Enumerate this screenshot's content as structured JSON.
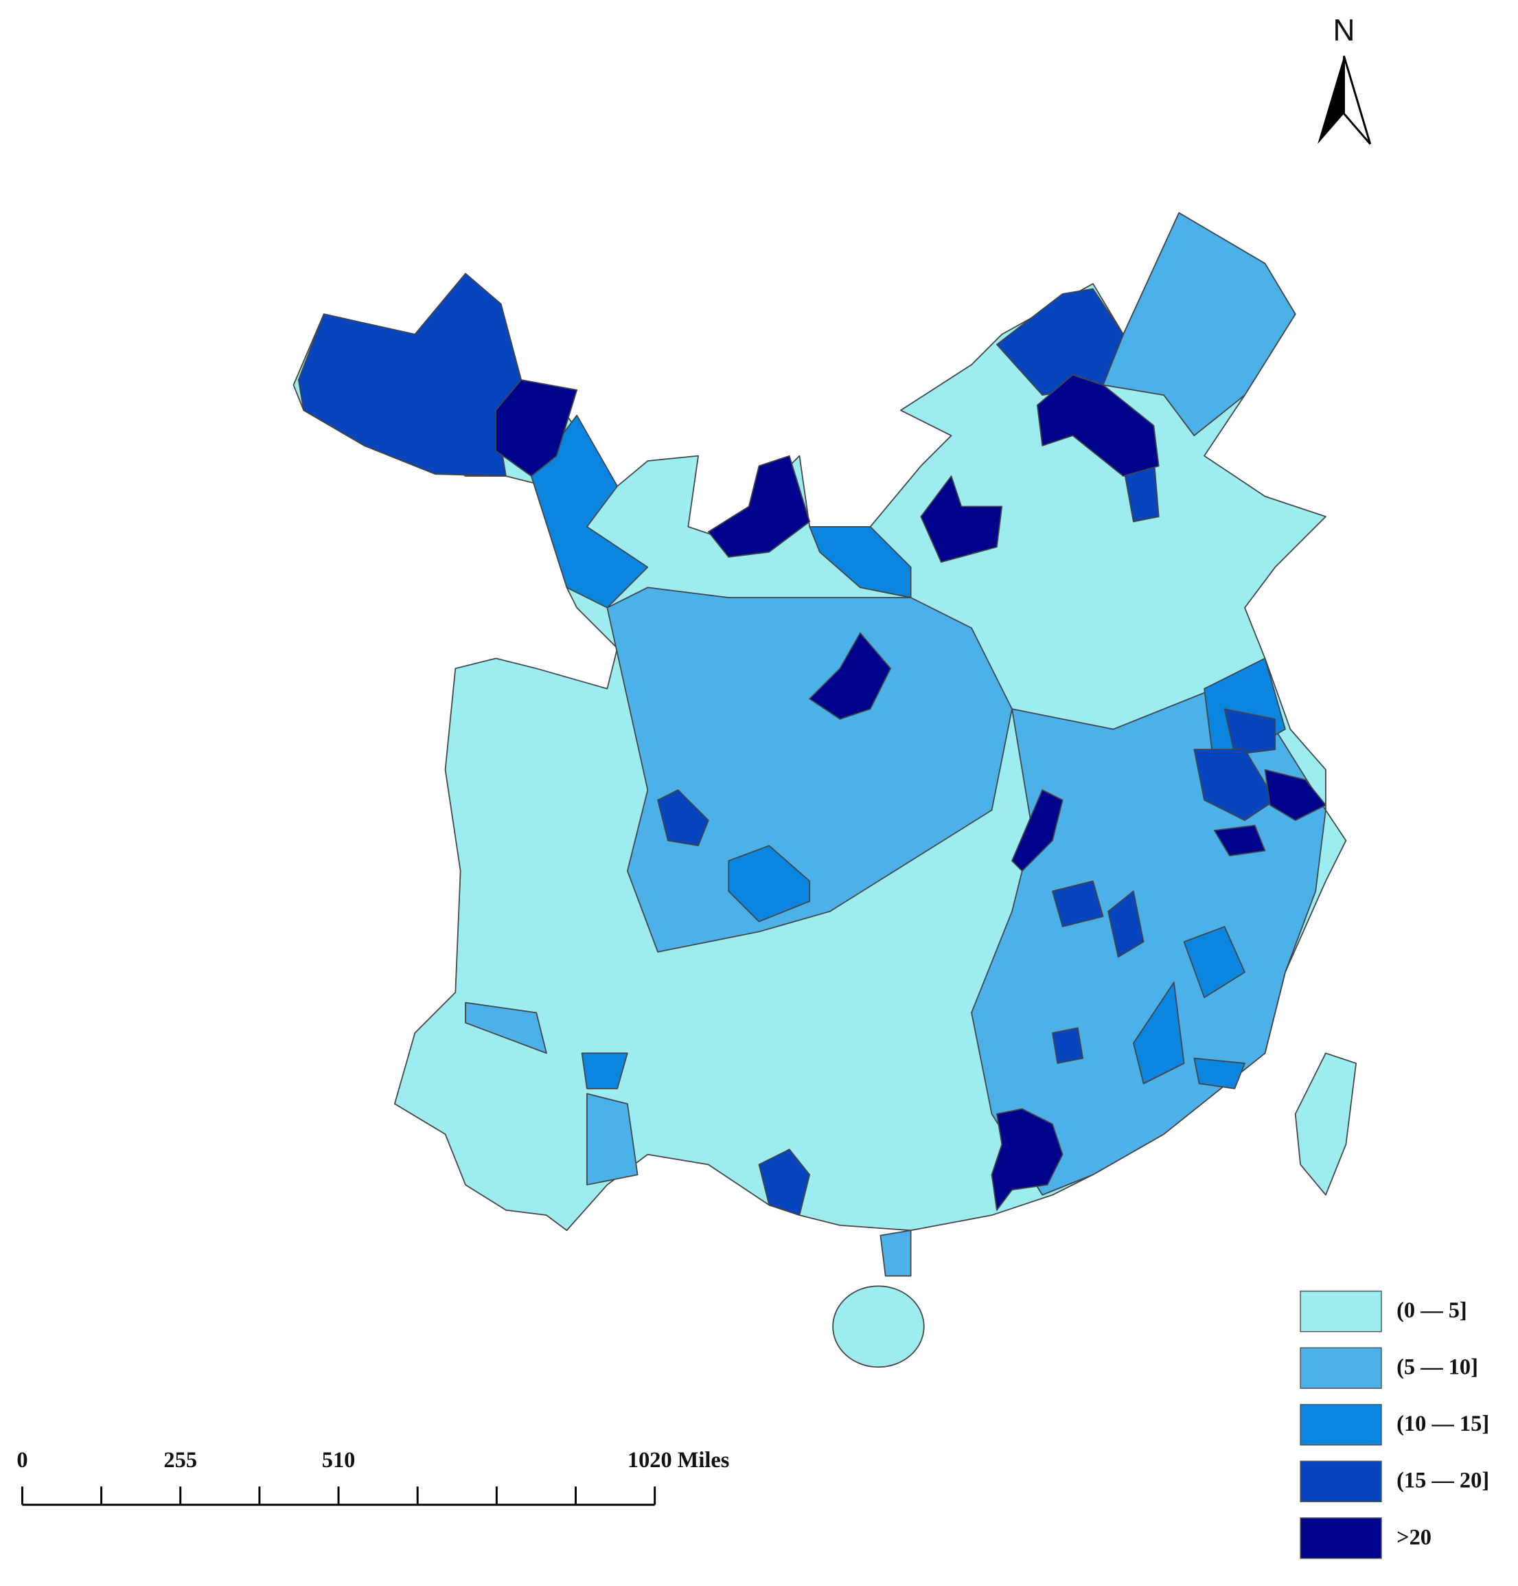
{
  "north_arrow": {
    "label": "N"
  },
  "legend": {
    "items": [
      {
        "label": "(0 — 5]",
        "color": "#9decf0"
      },
      {
        "label": "(5 — 10]",
        "color": "#4cb1e9"
      },
      {
        "label": "(10 — 15]",
        "color": "#0b86e0"
      },
      {
        "label": "(15 — 20]",
        "color": "#0645be"
      },
      {
        "label": ">20",
        "color": "#00038c"
      }
    ]
  },
  "scale_bar": {
    "labels": [
      "0",
      "255",
      "510",
      "1020 Miles"
    ]
  }
}
